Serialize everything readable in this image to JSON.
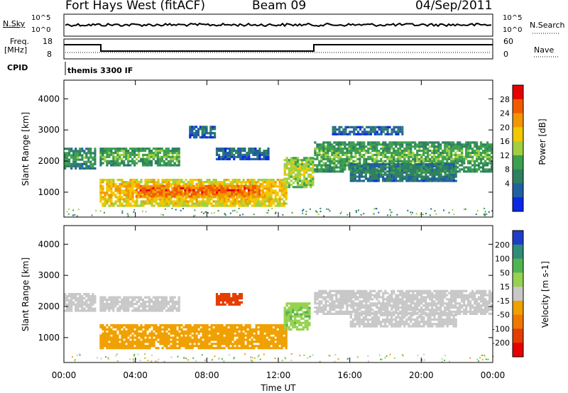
{
  "header": {
    "station": "Fort Hays West (fitACF)",
    "beam": "Beam 09",
    "date": "04/Sep/2011"
  },
  "noise_panel": {
    "left_label": "N.Sky",
    "right_label": "N.Search",
    "ticks": [
      "10^5",
      "10^0"
    ]
  },
  "freq_panel": {
    "left_label_1": "Freq.",
    "left_label_2": "[MHz]",
    "left_ticks": [
      "18",
      "8"
    ],
    "right_label": "Nave",
    "right_ticks": [
      "60",
      "0"
    ]
  },
  "cpid_panel": {
    "label": "CPID",
    "text": "themis 3300 IF"
  },
  "chart_data": [
    {
      "type": "heatmap",
      "panel": "power",
      "ylabel": "Slant Range [km]",
      "xlabel": "Time UT",
      "ylim": [
        200,
        4600
      ],
      "xlim": [
        0,
        24
      ],
      "y_ticks": [
        "1000",
        "2000",
        "3000",
        "4000"
      ],
      "x_ticks": [
        "00:00",
        "04:00",
        "08:00",
        "12:00",
        "16:00",
        "20:00",
        "00:00"
      ],
      "colorbar": {
        "label": "Power [dB]",
        "ticks": [
          "28",
          "24",
          "20",
          "16",
          "12",
          "8",
          "4"
        ],
        "colors": [
          "#e60000",
          "#f25a00",
          "#f29600",
          "#f2c800",
          "#a0d040",
          "#3ca050",
          "#2e8060",
          "#2060a0",
          "#0a28e6"
        ]
      },
      "bands": [
        {
          "t0": 0.0,
          "t1": 1.8,
          "r0": 1800,
          "r1": 2500,
          "level": 12
        },
        {
          "t0": 2.0,
          "t1": 6.5,
          "r0": 1900,
          "r1": 2500,
          "level": 14
        },
        {
          "t0": 2.0,
          "t1": 12.5,
          "r0": 600,
          "r1": 1500,
          "level": 22
        },
        {
          "t0": 4.0,
          "t1": 11.0,
          "r0": 900,
          "r1": 1300,
          "level": 27
        },
        {
          "t0": 7.0,
          "t1": 8.5,
          "r0": 2800,
          "r1": 3200,
          "level": 8
        },
        {
          "t0": 8.5,
          "t1": 11.5,
          "r0": 2100,
          "r1": 2500,
          "level": 8
        },
        {
          "t0": 12.3,
          "t1": 14.0,
          "r0": 1200,
          "r1": 2200,
          "level": 18
        },
        {
          "t0": 14.0,
          "t1": 24.0,
          "r0": 1700,
          "r1": 2700,
          "level": 14
        },
        {
          "t0": 16.0,
          "t1": 22.0,
          "r0": 1400,
          "r1": 2000,
          "level": 10
        },
        {
          "t0": 15.0,
          "t1": 19.0,
          "r0": 2900,
          "r1": 3200,
          "level": 8
        }
      ]
    },
    {
      "type": "heatmap",
      "panel": "velocity",
      "ylabel": "Slant Range [km]",
      "xlabel": "Time UT",
      "ylim": [
        200,
        4600
      ],
      "xlim": [
        0,
        24
      ],
      "y_ticks": [
        "1000",
        "2000",
        "3000",
        "4000"
      ],
      "x_ticks": [
        "00:00",
        "04:00",
        "08:00",
        "12:00",
        "16:00",
        "20:00",
        "00:00"
      ],
      "colorbar": {
        "label": "Velocity [m s-1]",
        "ticks": [
          "200",
          "100",
          "50",
          "15",
          "-15",
          "-50",
          "-100",
          "-200"
        ],
        "colors": [
          "#1e3cc8",
          "#2e8c78",
          "#50b450",
          "#96d250",
          "#c8c8c8",
          "#f0a000",
          "#f07800",
          "#e63c00",
          "#e60000"
        ]
      },
      "bands": [
        {
          "t0": 0.0,
          "t1": 1.8,
          "r0": 1900,
          "r1": 2500,
          "level": 0
        },
        {
          "t0": 2.0,
          "t1": 12.5,
          "r0": 700,
          "r1": 1500,
          "level": -40
        },
        {
          "t0": 2.0,
          "t1": 6.5,
          "r0": 1900,
          "r1": 2400,
          "level": 0
        },
        {
          "t0": 8.5,
          "t1": 10.0,
          "r0": 2100,
          "r1": 2500,
          "level": -120
        },
        {
          "t0": 12.3,
          "t1": 13.8,
          "r0": 1300,
          "r1": 2200,
          "level": 30
        },
        {
          "t0": 14.0,
          "t1": 24.0,
          "r0": 1800,
          "r1": 2600,
          "level": 0
        },
        {
          "t0": 16.0,
          "t1": 22.0,
          "r0": 1400,
          "r1": 1900,
          "level": 0
        }
      ]
    }
  ],
  "bottom_axis": {
    "ticks": [
      "00:00",
      "04:00",
      "08:00",
      "12:00",
      "16:00",
      "20:00",
      "00:00"
    ],
    "label": "Time UT"
  }
}
